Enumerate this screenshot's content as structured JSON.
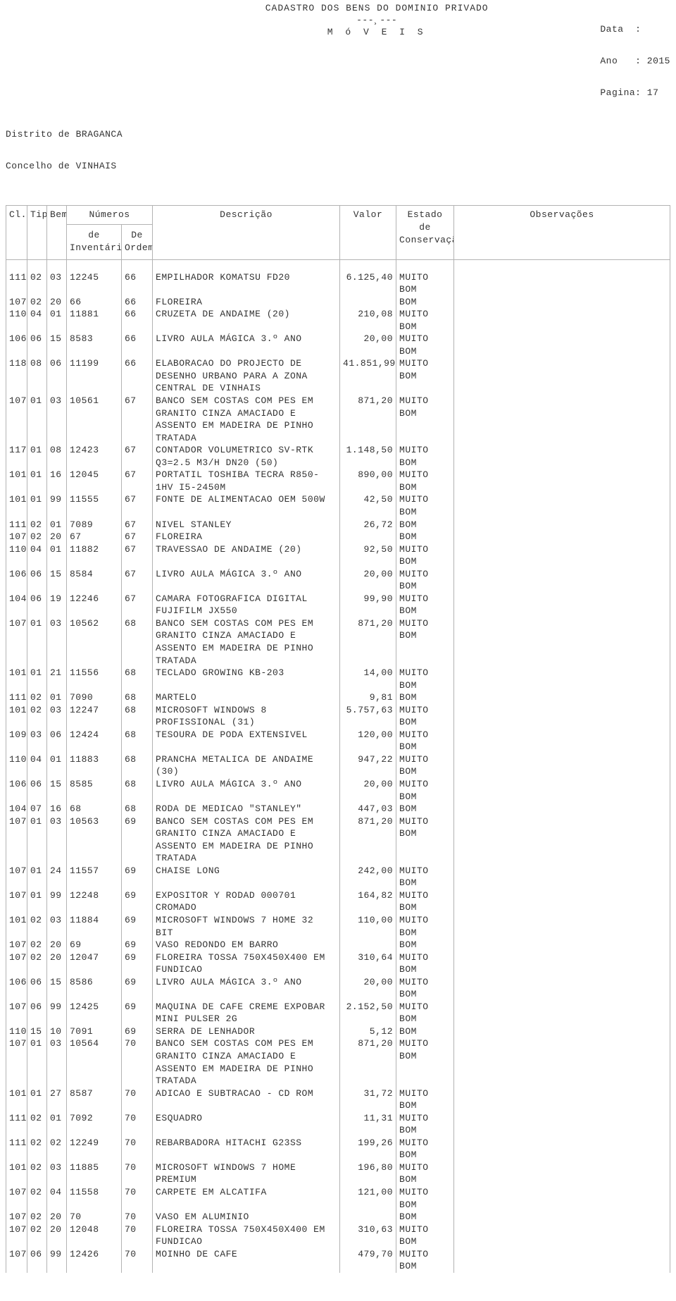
{
  "header": {
    "title": "CADASTRO DOS BENS DO DOMINIO PRIVADO",
    "separator": "---¸---",
    "subtitle": "M ó V E I S",
    "data_label": "Data  :",
    "ano_label": "Ano   : ",
    "ano_value": "2015",
    "pagina_label": "Pagina: ",
    "pagina_value": "17",
    "distrito": "Distrito de BRAGANCA",
    "concelho": "Concelho de VINHAIS"
  },
  "columns": {
    "cl": "Cl.",
    "tipo": "Tipo",
    "bem": "Bem",
    "numeros": "Números",
    "de_inventario": "de\nInventário",
    "de_ordem": "De\nOrdem",
    "descricao": "Descrição",
    "valor": "Valor",
    "estado": "Estado\nde\nConservação",
    "obs": "Observações"
  },
  "rows": [
    {
      "cl": "111",
      "tipo": "02",
      "bem": "03",
      "inv": "12245",
      "ord": "66",
      "desc": "EMPILHADOR KOMATSU FD20",
      "val": "6.125,40",
      "est": "MUITO BOM",
      "obs": ""
    },
    {
      "cl": "107",
      "tipo": "02",
      "bem": "20",
      "inv": "66",
      "ord": "66",
      "desc": "FLOREIRA",
      "val": "",
      "est": "BOM",
      "obs": ""
    },
    {
      "cl": "110",
      "tipo": "04",
      "bem": "01",
      "inv": "11881",
      "ord": "66",
      "desc": "CRUZETA DE ANDAIME (20)",
      "val": "210,08",
      "est": "MUITO BOM",
      "obs": ""
    },
    {
      "cl": "106",
      "tipo": "06",
      "bem": "15",
      "inv": "8583",
      "ord": "66",
      "desc": "LIVRO AULA MÁGICA 3.º ANO",
      "val": "20,00",
      "est": "MUITO BOM",
      "obs": ""
    },
    {
      "cl": "118",
      "tipo": "08",
      "bem": "06",
      "inv": "11199",
      "ord": "66",
      "desc": "ELABORACAO DO PROJECTO DE DESENHO URBANO PARA A ZONA CENTRAL DE VINHAIS",
      "val": "41.851,99",
      "est": "MUITO BOM",
      "obs": ""
    },
    {
      "cl": "107",
      "tipo": "01",
      "bem": "03",
      "inv": "10561",
      "ord": "67",
      "desc": "BANCO SEM COSTAS COM PES EM GRANITO CINZA AMACIADO E ASSENTO EM MADEIRA DE PINHO TRATADA",
      "val": "871,20",
      "est": "MUITO BOM",
      "obs": ""
    },
    {
      "cl": "117",
      "tipo": "01",
      "bem": "08",
      "inv": "12423",
      "ord": "67",
      "desc": "CONTADOR VOLUMETRICO SV-RTK Q3=2.5 M3/H DN20 (50)",
      "val": "1.148,50",
      "est": "MUITO BOM",
      "obs": ""
    },
    {
      "cl": "101",
      "tipo": "01",
      "bem": "16",
      "inv": "12045",
      "ord": "67",
      "desc": "PORTATIL TOSHIBA TECRA R850-1HV I5-2450M",
      "val": "890,00",
      "est": "MUITO BOM",
      "obs": ""
    },
    {
      "cl": "101",
      "tipo": "01",
      "bem": "99",
      "inv": "11555",
      "ord": "67",
      "desc": "FONTE DE ALIMENTACAO OEM 500W",
      "val": "42,50",
      "est": "MUITO BOM",
      "obs": ""
    },
    {
      "cl": "111",
      "tipo": "02",
      "bem": "01",
      "inv": "7089",
      "ord": "67",
      "desc": "NIVEL STANLEY",
      "val": "26,72",
      "est": "BOM",
      "obs": ""
    },
    {
      "cl": "107",
      "tipo": "02",
      "bem": "20",
      "inv": "67",
      "ord": "67",
      "desc": "FLOREIRA",
      "val": "",
      "est": "BOM",
      "obs": ""
    },
    {
      "cl": "110",
      "tipo": "04",
      "bem": "01",
      "inv": "11882",
      "ord": "67",
      "desc": "TRAVESSAO DE ANDAIME (20)",
      "val": "92,50",
      "est": "MUITO BOM",
      "obs": ""
    },
    {
      "cl": "106",
      "tipo": "06",
      "bem": "15",
      "inv": "8584",
      "ord": "67",
      "desc": "LIVRO AULA MÁGICA 3.º ANO",
      "val": "20,00",
      "est": "MUITO BOM",
      "obs": ""
    },
    {
      "cl": "104",
      "tipo": "06",
      "bem": "19",
      "inv": "12246",
      "ord": "67",
      "desc": "CAMARA FOTOGRAFICA DIGITAL FUJIFILM JX550",
      "val": "99,90",
      "est": "MUITO BOM",
      "obs": ""
    },
    {
      "cl": "107",
      "tipo": "01",
      "bem": "03",
      "inv": "10562",
      "ord": "68",
      "desc": "BANCO SEM COSTAS COM PES EM GRANITO CINZA AMACIADO E ASSENTO EM MADEIRA DE PINHO TRATADA",
      "val": "871,20",
      "est": "MUITO BOM",
      "obs": ""
    },
    {
      "cl": "101",
      "tipo": "01",
      "bem": "21",
      "inv": "11556",
      "ord": "68",
      "desc": "TECLADO GROWING KB-203",
      "val": "14,00",
      "est": "MUITO BOM",
      "obs": ""
    },
    {
      "cl": "111",
      "tipo": "02",
      "bem": "01",
      "inv": "7090",
      "ord": "68",
      "desc": "MARTELO",
      "val": "9,81",
      "est": "BOM",
      "obs": ""
    },
    {
      "cl": "101",
      "tipo": "02",
      "bem": "03",
      "inv": "12247",
      "ord": "68",
      "desc": "MICROSOFT WINDOWS 8 PROFISSIONAL (31)",
      "val": "5.757,63",
      "est": "MUITO BOM",
      "obs": ""
    },
    {
      "cl": "109",
      "tipo": "03",
      "bem": "06",
      "inv": "12424",
      "ord": "68",
      "desc": "TESOURA DE PODA EXTENSIVEL",
      "val": "120,00",
      "est": "MUITO BOM",
      "obs": ""
    },
    {
      "cl": "110",
      "tipo": "04",
      "bem": "01",
      "inv": "11883",
      "ord": "68",
      "desc": "PRANCHA METALICA DE ANDAIME (30)",
      "val": "947,22",
      "est": "MUITO BOM",
      "obs": ""
    },
    {
      "cl": "106",
      "tipo": "06",
      "bem": "15",
      "inv": "8585",
      "ord": "68",
      "desc": "LIVRO AULA MÁGICA 3.º ANO",
      "val": "20,00",
      "est": "MUITO BOM",
      "obs": ""
    },
    {
      "cl": "104",
      "tipo": "07",
      "bem": "16",
      "inv": "68",
      "ord": "68",
      "desc": "RODA DE MEDICAO \"STANLEY\"",
      "val": "447,03",
      "est": "BOM",
      "obs": ""
    },
    {
      "cl": "107",
      "tipo": "01",
      "bem": "03",
      "inv": "10563",
      "ord": "69",
      "desc": "BANCO SEM COSTAS COM PES EM GRANITO CINZA AMACIADO E ASSENTO EM MADEIRA DE PINHO TRATADA",
      "val": "871,20",
      "est": "MUITO BOM",
      "obs": ""
    },
    {
      "cl": "107",
      "tipo": "01",
      "bem": "24",
      "inv": "11557",
      "ord": "69",
      "desc": "CHAISE LONG",
      "val": "242,00",
      "est": "MUITO BOM",
      "obs": ""
    },
    {
      "cl": "107",
      "tipo": "01",
      "bem": "99",
      "inv": "12248",
      "ord": "69",
      "desc": "EXPOSITOR Y RODAD 000701 CROMADO",
      "val": "164,82",
      "est": "MUITO BOM",
      "obs": ""
    },
    {
      "cl": "101",
      "tipo": "02",
      "bem": "03",
      "inv": "11884",
      "ord": "69",
      "desc": "MICROSOFT WINDOWS 7 HOME 32 BIT",
      "val": "110,00",
      "est": "MUITO BOM",
      "obs": ""
    },
    {
      "cl": "107",
      "tipo": "02",
      "bem": "20",
      "inv": "69",
      "ord": "69",
      "desc": "VASO REDONDO EM BARRO",
      "val": "",
      "est": "BOM",
      "obs": ""
    },
    {
      "cl": "107",
      "tipo": "02",
      "bem": "20",
      "inv": "12047",
      "ord": "69",
      "desc": "FLOREIRA TOSSA 750X450X400 EM FUNDICAO",
      "val": "310,64",
      "est": "MUITO BOM",
      "obs": ""
    },
    {
      "cl": "106",
      "tipo": "06",
      "bem": "15",
      "inv": "8586",
      "ord": "69",
      "desc": "LIVRO AULA MÁGICA 3.º ANO",
      "val": "20,00",
      "est": "MUITO BOM",
      "obs": ""
    },
    {
      "cl": "107",
      "tipo": "06",
      "bem": "99",
      "inv": "12425",
      "ord": "69",
      "desc": "MAQUINA DE CAFE CREME EXPOBAR MINI PULSER 2G",
      "val": "2.152,50",
      "est": "MUITO BOM",
      "obs": ""
    },
    {
      "cl": "110",
      "tipo": "15",
      "bem": "10",
      "inv": "7091",
      "ord": "69",
      "desc": "SERRA DE LENHADOR",
      "val": "5,12",
      "est": "BOM",
      "obs": ""
    },
    {
      "cl": "107",
      "tipo": "01",
      "bem": "03",
      "inv": "10564",
      "ord": "70",
      "desc": "BANCO SEM COSTAS COM PES EM GRANITO CINZA AMACIADO E ASSENTO EM MADEIRA DE PINHO TRATADA",
      "val": "871,20",
      "est": "MUITO BOM",
      "obs": ""
    },
    {
      "cl": "101",
      "tipo": "01",
      "bem": "27",
      "inv": "8587",
      "ord": "70",
      "desc": "ADICAO E SUBTRACAO - CD ROM",
      "val": "31,72",
      "est": "MUITO BOM",
      "obs": ""
    },
    {
      "cl": "111",
      "tipo": "02",
      "bem": "01",
      "inv": "7092",
      "ord": "70",
      "desc": "ESQUADRO",
      "val": "11,31",
      "est": "MUITO BOM",
      "obs": ""
    },
    {
      "cl": "111",
      "tipo": "02",
      "bem": "02",
      "inv": "12249",
      "ord": "70",
      "desc": "REBARBADORA HITACHI G23SS",
      "val": "199,26",
      "est": "MUITO BOM",
      "obs": ""
    },
    {
      "cl": "101",
      "tipo": "02",
      "bem": "03",
      "inv": "11885",
      "ord": "70",
      "desc": "MICROSOFT WINDOWS 7 HOME PREMIUM",
      "val": "196,80",
      "est": "MUITO BOM",
      "obs": ""
    },
    {
      "cl": "107",
      "tipo": "02",
      "bem": "04",
      "inv": "11558",
      "ord": "70",
      "desc": "CARPETE EM ALCATIFA",
      "val": "121,00",
      "est": "MUITO BOM",
      "obs": ""
    },
    {
      "cl": "107",
      "tipo": "02",
      "bem": "20",
      "inv": "70",
      "ord": "70",
      "desc": "VASO EM ALUMINIO",
      "val": "",
      "est": "BOM",
      "obs": ""
    },
    {
      "cl": "107",
      "tipo": "02",
      "bem": "20",
      "inv": "12048",
      "ord": "70",
      "desc": "FLOREIRA TOSSA 750X450X400 EM FUNDICAO",
      "val": "310,63",
      "est": "MUITO BOM",
      "obs": ""
    },
    {
      "cl": "107",
      "tipo": "06",
      "bem": "99",
      "inv": "12426",
      "ord": "70",
      "desc": "MOINHO DE CAFE",
      "val": "479,70",
      "est": "MUITO BOM",
      "obs": ""
    }
  ]
}
